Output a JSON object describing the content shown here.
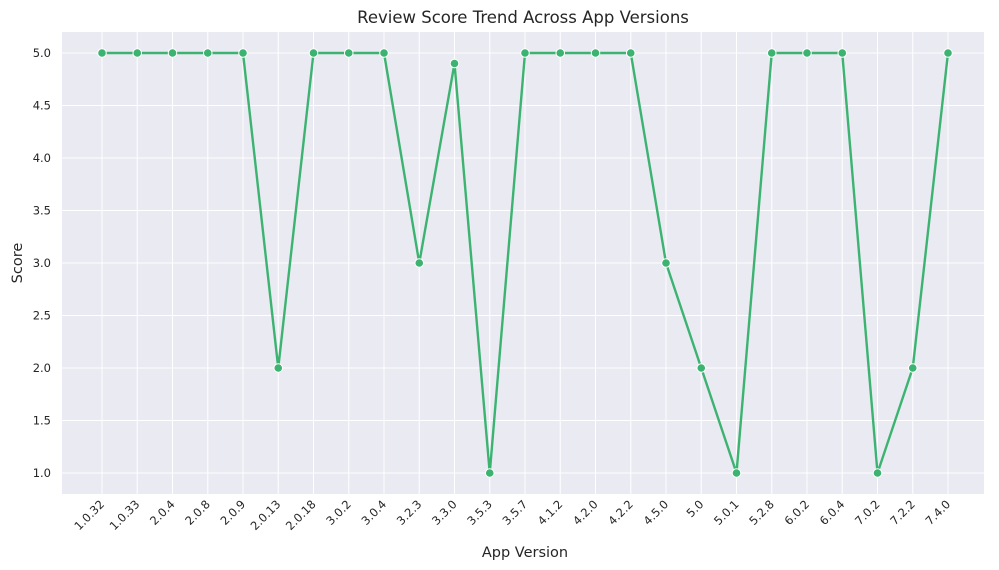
{
  "chart_data": {
    "type": "line",
    "title": "Review Score Trend Across App Versions",
    "xlabel": "App Version",
    "ylabel": "Score",
    "ylim": [
      0.8,
      5.2
    ],
    "yticks": [
      "1.0",
      "1.5",
      "2.0",
      "2.5",
      "3.0",
      "3.5",
      "4.0",
      "4.5",
      "5.0"
    ],
    "grid": true,
    "legend": "none",
    "line_color": "#3cb371",
    "background_color": "#eaeaf2",
    "categories": [
      "1.0.32",
      "1.0.33",
      "2.0.4",
      "2.0.8",
      "2.0.9",
      "2.0.13",
      "2.0.18",
      "3.0.2",
      "3.0.4",
      "3.2.3",
      "3.3.0",
      "3.5.3",
      "3.5.7",
      "4.1.2",
      "4.2.0",
      "4.2.2",
      "4.5.0",
      "5.0",
      "5.0.1",
      "5.2.8",
      "6.0.2",
      "6.0.4",
      "7.0.2",
      "7.2.2",
      "7.4.0"
    ],
    "values": [
      5.0,
      5.0,
      5.0,
      5.0,
      5.0,
      2.0,
      5.0,
      5.0,
      5.0,
      3.0,
      4.9,
      1.0,
      5.0,
      5.0,
      5.0,
      5.0,
      3.0,
      2.0,
      1.0,
      5.0,
      5.0,
      5.0,
      1.0,
      2.0,
      5.0
    ]
  }
}
